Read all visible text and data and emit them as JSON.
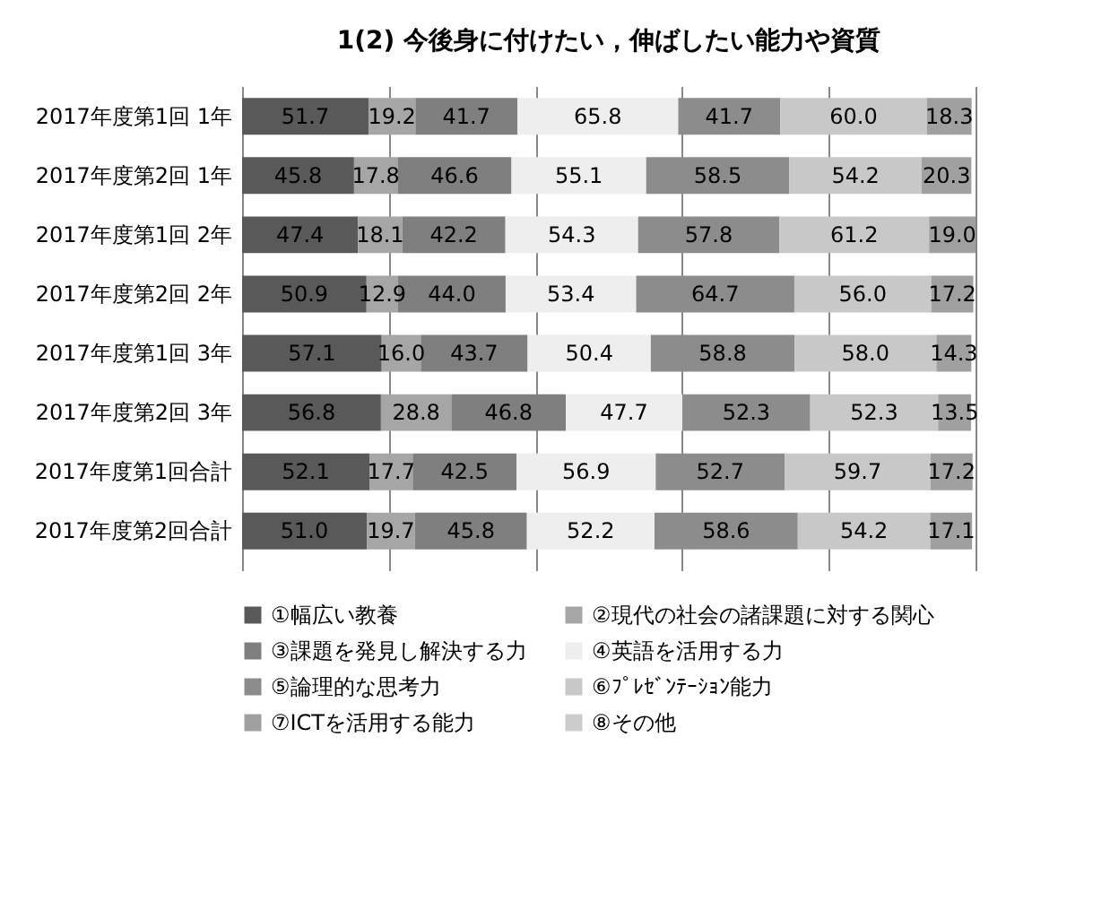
{
  "chart_data": {
    "type": "bar",
    "orientation": "horizontal",
    "stacked": true,
    "title": "1(2) 今後身に付けたい，伸ばしたい能力や資質",
    "categories": [
      "2017年度第1回 1年",
      "2017年度第2回 1年",
      "2017年度第1回 2年",
      "2017年度第2回 2年",
      "2017年度第1回 3年",
      "2017年度第2回 3年",
      "2017年度第1回合計",
      "2017年度第2回合計"
    ],
    "series": [
      {
        "name": "①幅広い教養",
        "color": "#595959",
        "values": [
          51.7,
          45.8,
          47.4,
          50.9,
          57.1,
          56.8,
          52.1,
          51.0
        ],
        "value_labels": [
          "51.7",
          "45.8",
          "47.4",
          "50.9",
          "57.1",
          "56.8",
          "52.1",
          "51.0"
        ]
      },
      {
        "name": "②現代の社会の諸課題に対する関心",
        "color": "#a6a6a6",
        "values": [
          19.2,
          17.8,
          18.1,
          12.9,
          16.0,
          28.8,
          17.7,
          19.7
        ],
        "value_labels": [
          "19.2",
          "17.8",
          "18.1",
          "12.9",
          "16.0",
          "28.8",
          "17.7",
          "19.7"
        ]
      },
      {
        "name": "③課題を発見し解決する力",
        "color": "#7f7f7f",
        "values": [
          41.7,
          46.6,
          42.2,
          44.0,
          43.7,
          46.8,
          42.5,
          45.8
        ],
        "value_labels": [
          "41.7",
          "46.6",
          "42.2",
          "44.0",
          "43.7",
          "46.8",
          "42.5",
          "45.8"
        ]
      },
      {
        "name": "④英語を活用する力",
        "color": "#eeeeee",
        "values": [
          65.8,
          55.1,
          54.3,
          53.4,
          50.4,
          47.7,
          56.9,
          52.2
        ],
        "value_labels": [
          "65.8",
          "55.1",
          "54.3",
          "53.4",
          "50.4",
          "47.7",
          "56.9",
          "52.2"
        ]
      },
      {
        "name": "⑤論理的な思考力",
        "color": "#8c8c8c",
        "values": [
          41.7,
          58.5,
          57.8,
          64.7,
          58.8,
          52.3,
          52.7,
          58.6
        ],
        "value_labels": [
          "41.7",
          "58.5",
          "57.8",
          "64.7",
          "58.8",
          "52.3",
          "52.7",
          "58.6"
        ]
      },
      {
        "name": "⑥ﾌﾟﾚｾﾞﾝﾃｰｼｮﾝ能力",
        "color": "#c8c8c8",
        "values": [
          60.0,
          54.2,
          61.2,
          56.0,
          58.0,
          52.3,
          59.7,
          54.2
        ],
        "value_labels": [
          "60.0",
          "54.2",
          "61.2",
          "56.0",
          "58.0",
          "52.3",
          "59.7",
          "54.2"
        ]
      },
      {
        "name": "⑦ICTを活用する能力",
        "color": "#a0a0a0",
        "values": [
          18.3,
          20.3,
          19.0,
          17.2,
          14.3,
          13.5,
          17.2,
          17.1
        ],
        "value_labels": [
          "18.3",
          "20.3",
          "19.0",
          "17.2",
          "14.3",
          "13.5",
          "17.2",
          "17.1"
        ]
      },
      {
        "name": "⑧その他",
        "color": "#cccccc",
        "values": [
          null,
          null,
          null,
          null,
          null,
          null,
          null,
          null
        ]
      }
    ],
    "xlim": [
      0,
      300
    ],
    "xticks": [
      {
        "value": 0,
        "label": null
      },
      {
        "value": 60,
        "label": null
      },
      {
        "value": 120,
        "label": null
      },
      {
        "value": 180,
        "label": null
      },
      {
        "value": 240,
        "label": null
      },
      {
        "value": 300,
        "label": null
      }
    ],
    "grid": "x",
    "tick_labels": "y",
    "legend": "bottom"
  }
}
